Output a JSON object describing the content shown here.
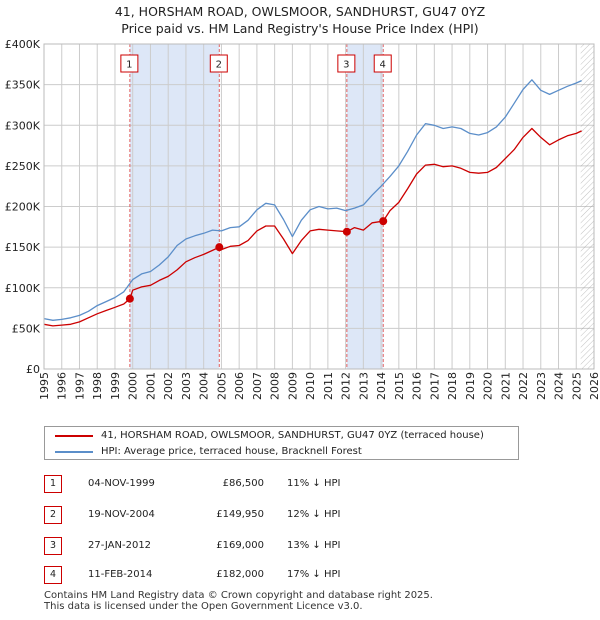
{
  "title_line1": "41, HORSHAM ROAD, OWLSMOOR, SANDHURST, GU47 0YZ",
  "title_line2": "Price paid vs. HM Land Registry's House Price Index (HPI)",
  "chart_data": {
    "type": "line",
    "title": "41, HORSHAM ROAD, OWLSMOOR, SANDHURST, GU47 0YZ — Price paid vs. HM Land Registry's House Price Index (HPI)",
    "xlabel": "",
    "ylabel": "",
    "xlim": [
      1995,
      2026
    ],
    "ylim": [
      0,
      400000
    ],
    "x_ticks": [
      "1995",
      "1996",
      "1997",
      "1998",
      "1999",
      "2000",
      "2001",
      "2002",
      "2003",
      "2004",
      "2005",
      "2006",
      "2007",
      "2008",
      "2009",
      "2010",
      "2011",
      "2012",
      "2013",
      "2014",
      "2015",
      "2016",
      "2017",
      "2018",
      "2019",
      "2020",
      "2021",
      "2022",
      "2023",
      "2024",
      "2025",
      "2026"
    ],
    "y_ticks": [
      0,
      50000,
      100000,
      150000,
      200000,
      250000,
      300000,
      350000,
      400000
    ],
    "y_tick_labels": [
      "£0",
      "£50K",
      "£100K",
      "£150K",
      "£200K",
      "£250K",
      "£300K",
      "£350K",
      "£400K"
    ],
    "colors": {
      "property": "#cc0000",
      "hpi": "#5b8ec9",
      "band": "#dde7f7",
      "grid": "#cccccc"
    },
    "series": [
      {
        "name": "41, HORSHAM ROAD, OWLSMOOR, SANDHURST, GU47 0YZ (terraced house)",
        "color": "#cc0000",
        "x": [
          1995,
          1995.5,
          1996,
          1996.5,
          1997,
          1997.5,
          1998,
          1998.5,
          1999,
          1999.5,
          1999.84,
          2000,
          2000.5,
          2001,
          2001.5,
          2002,
          2002.5,
          2003,
          2003.5,
          2004,
          2004.5,
          2004.88,
          2005,
          2005.5,
          2006,
          2006.5,
          2007,
          2007.5,
          2008,
          2008.5,
          2009,
          2009.5,
          2010,
          2010.5,
          2011,
          2011.5,
          2012.07,
          2012.5,
          2013,
          2013.5,
          2014.12,
          2014.5,
          2015,
          2015.5,
          2016,
          2016.5,
          2017,
          2017.5,
          2018,
          2018.5,
          2019,
          2019.5,
          2020,
          2020.5,
          2021,
          2021.5,
          2022,
          2022.5,
          2023,
          2023.5,
          2024,
          2024.5,
          2025,
          2025.3
        ],
        "y": [
          55000,
          53000,
          54000,
          55000,
          58000,
          63000,
          68000,
          72000,
          76000,
          80000,
          86500,
          97000,
          101000,
          103000,
          109000,
          114000,
          122000,
          132000,
          137000,
          141000,
          146000,
          149950,
          147000,
          151000,
          152000,
          158000,
          170000,
          176000,
          176000,
          160000,
          142000,
          158000,
          170000,
          172000,
          171000,
          170000,
          169000,
          174000,
          171000,
          180000,
          182000,
          195000,
          205000,
          222000,
          240000,
          251000,
          252000,
          249000,
          250000,
          247000,
          242000,
          241000,
          242000,
          248000,
          259000,
          270000,
          285000,
          296000,
          285000,
          276000,
          282000,
          287000,
          290000,
          293000
        ]
      },
      {
        "name": "HPI: Average price, terraced house, Bracknell Forest",
        "color": "#5b8ec9",
        "x": [
          1995,
          1995.5,
          1996,
          1996.5,
          1997,
          1997.5,
          1998,
          1998.5,
          1999,
          1999.5,
          2000,
          2000.5,
          2001,
          2001.5,
          2002,
          2002.5,
          2003,
          2003.5,
          2004,
          2004.5,
          2005,
          2005.5,
          2006,
          2006.5,
          2007,
          2007.5,
          2008,
          2008.5,
          2009,
          2009.5,
          2010,
          2010.5,
          2011,
          2011.5,
          2012,
          2012.5,
          2013,
          2013.5,
          2014,
          2014.5,
          2015,
          2015.5,
          2016,
          2016.5,
          2017,
          2017.5,
          2018,
          2018.5,
          2019,
          2019.5,
          2020,
          2020.5,
          2021,
          2021.5,
          2022,
          2022.5,
          2023,
          2023.5,
          2024,
          2024.5,
          2025,
          2025.3
        ],
        "y": [
          62000,
          60000,
          61000,
          63000,
          66000,
          71000,
          78000,
          83000,
          88000,
          95000,
          110000,
          117000,
          120000,
          128000,
          138000,
          152000,
          160000,
          164000,
          167000,
          171000,
          170000,
          174000,
          175000,
          183000,
          196000,
          204000,
          202000,
          184000,
          163000,
          183000,
          196000,
          200000,
          197000,
          198000,
          195000,
          198000,
          202000,
          214000,
          225000,
          237000,
          250000,
          268000,
          288000,
          302000,
          300000,
          296000,
          298000,
          296000,
          290000,
          288000,
          291000,
          298000,
          310000,
          327000,
          344000,
          356000,
          343000,
          338000,
          343000,
          348000,
          352000,
          355000
        ]
      }
    ],
    "sales": [
      {
        "label": "1",
        "x": 1999.84,
        "y": 86500
      },
      {
        "label": "2",
        "x": 2004.88,
        "y": 149950
      },
      {
        "label": "3",
        "x": 2012.07,
        "y": 169000
      },
      {
        "label": "4",
        "x": 2014.12,
        "y": 182000
      }
    ],
    "shaded_ranges": [
      [
        1999.84,
        2004.88
      ],
      [
        2012.07,
        2014.12
      ]
    ],
    "hatched_from": 2025.25
  },
  "legend": {
    "property_label": "41, HORSHAM ROAD, OWLSMOOR, SANDHURST, GU47 0YZ (terraced house)",
    "hpi_label": "HPI: Average price, terraced house, Bracknell Forest"
  },
  "sales_table": [
    {
      "num": "1",
      "date": "04-NOV-1999",
      "price": "£86,500",
      "hpi": "11% ↓ HPI"
    },
    {
      "num": "2",
      "date": "19-NOV-2004",
      "price": "£149,950",
      "hpi": "12% ↓ HPI"
    },
    {
      "num": "3",
      "date": "27-JAN-2012",
      "price": "£169,000",
      "hpi": "13% ↓ HPI"
    },
    {
      "num": "4",
      "date": "11-FEB-2014",
      "price": "£182,000",
      "hpi": "17% ↓ HPI"
    }
  ],
  "footer": {
    "line1": "Contains HM Land Registry data © Crown copyright and database right 2025.",
    "line2": "This data is licensed under the Open Government Licence v3.0."
  }
}
